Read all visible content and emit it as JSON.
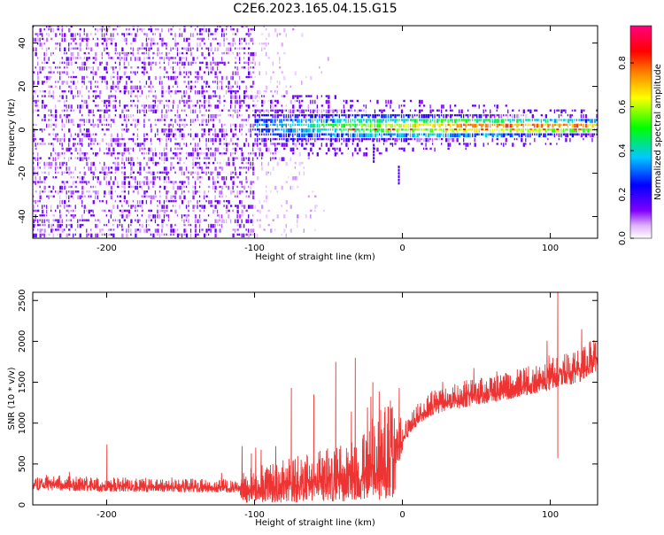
{
  "title": "C2E6.2023.165.04.15.G15",
  "chart_data": [
    {
      "type": "heatmap",
      "xlabel": "Height of straight line (km)",
      "ylabel": "Frequency (Hz)",
      "xlim": [
        -250,
        132
      ],
      "ylim": [
        -50,
        48
      ],
      "xticks": [
        -200,
        -100,
        0,
        100
      ],
      "yticks": [
        -40,
        -20,
        0,
        20,
        40
      ],
      "grid": false,
      "colorbar": {
        "label": "Normalized spectral amplitude",
        "range": [
          0.0,
          0.97
        ],
        "ticks": [
          0.0,
          0.2,
          0.4,
          0.6,
          0.8
        ],
        "colors": [
          "#ffffff",
          "#8000ff",
          "#0000ff",
          "#00c8ff",
          "#00ff00",
          "#ffff00",
          "#ff8000",
          "#ff0000",
          "#ff0080"
        ]
      },
      "features": [
        {
          "name": "noise_region",
          "x_range": [
            -250,
            -100
          ],
          "freq_range": [
            -50,
            48
          ],
          "level": 0.1
        },
        {
          "name": "transition_region",
          "x_range": [
            -100,
            -50
          ],
          "freq_range": [
            -50,
            48
          ],
          "level": 0.03
        },
        {
          "name": "carrier_band",
          "x_range": [
            -100,
            132
          ],
          "center_freq": 0,
          "width_hz": 8,
          "peak_level": 0.9
        }
      ]
    },
    {
      "type": "line",
      "xlabel": "Height of straight line (km)",
      "ylabel": "SNR (10 * v/v)",
      "xlim": [
        -250,
        132
      ],
      "ylim": [
        0,
        2600
      ],
      "xticks": [
        -200,
        -100,
        0,
        100
      ],
      "yticks": [
        0,
        500,
        1000,
        1500,
        2000,
        2500
      ],
      "grid": false,
      "color": "#ee3333",
      "trend": {
        "x": [
          -250,
          -200,
          -150,
          -120,
          -100,
          -60,
          -30,
          -10,
          0,
          10,
          20,
          40,
          60,
          80,
          100,
          120,
          132
        ],
        "y": [
          280,
          250,
          240,
          230,
          250,
          350,
          420,
          700,
          850,
          1100,
          1250,
          1350,
          1420,
          1500,
          1600,
          1700,
          1850
        ]
      },
      "spikes": [
        {
          "x": -200,
          "y": 740
        },
        {
          "x": -102,
          "y": 630
        },
        {
          "x": -75,
          "y": 1430
        },
        {
          "x": -60,
          "y": 1350
        },
        {
          "x": -45,
          "y": 1750
        },
        {
          "x": -32,
          "y": 1800
        },
        {
          "x": -20,
          "y": 1500
        },
        {
          "x": 105,
          "y": 2600
        },
        {
          "x": 105,
          "y": 570
        }
      ]
    }
  ]
}
